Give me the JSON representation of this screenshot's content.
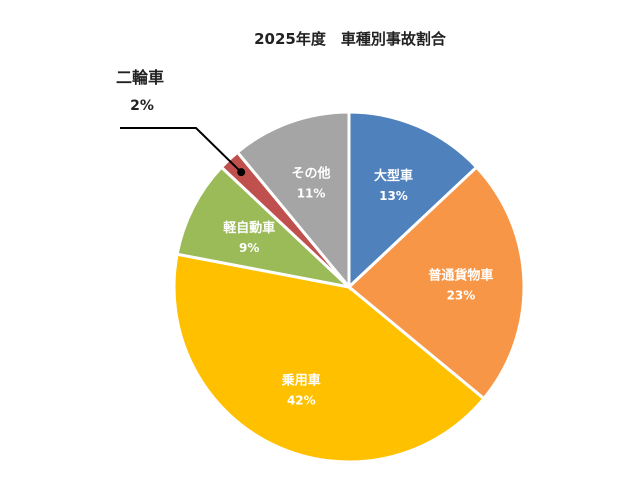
{
  "chart_data": {
    "type": "pie",
    "title": "2025年度　車種別事故割合",
    "slices": [
      {
        "label": "大型車",
        "value": 13,
        "value_label": "13%",
        "color": "#4f81bd"
      },
      {
        "label": "普通貨物車",
        "value": 23,
        "value_label": "23%",
        "color": "#f79646"
      },
      {
        "label": "乗用車",
        "value": 42,
        "value_label": "42%",
        "color": "#ffc000"
      },
      {
        "label": "軽自動車",
        "value": 9,
        "value_label": "9%",
        "color": "#9bbb59"
      },
      {
        "label": "二輪車",
        "value": 2,
        "value_label": "2%",
        "color": "#c0504d"
      },
      {
        "label": "その他",
        "value": 11,
        "value_label": "11%",
        "color": "#a5a5a5"
      }
    ],
    "start": "12 o'clock",
    "direction": "clockwise",
    "legend": "none"
  }
}
